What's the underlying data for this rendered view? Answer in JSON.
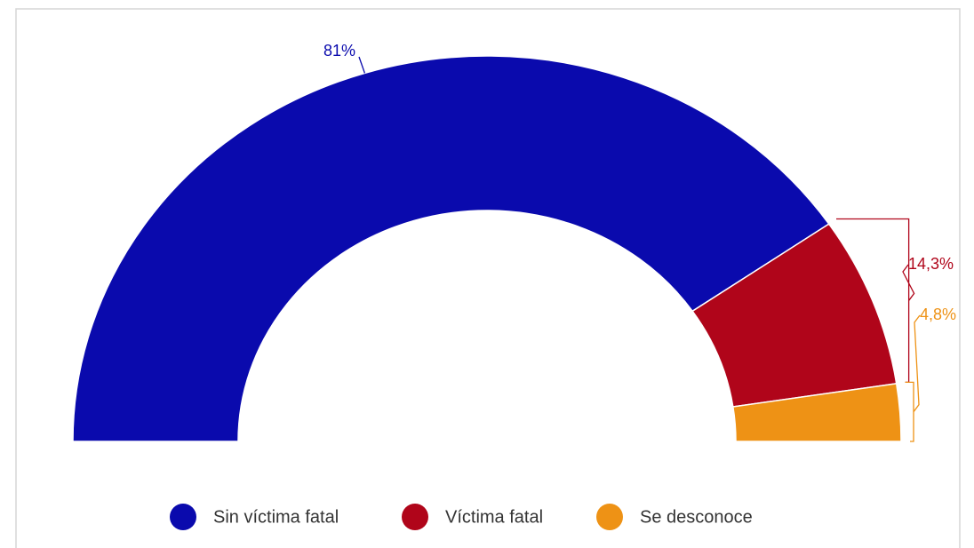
{
  "chart_data": {
    "type": "pie",
    "shape": "half-donut",
    "categories": [
      "Sin víctima fatal",
      "Víctima fatal",
      "Se desconoce"
    ],
    "values": [
      81,
      14.3,
      4.8
    ],
    "value_labels": [
      "81%",
      "14,3%",
      "4,8%"
    ],
    "colors": [
      "#0a0aad",
      "#b0051a",
      "#ee9215"
    ],
    "legend": "bottom"
  }
}
